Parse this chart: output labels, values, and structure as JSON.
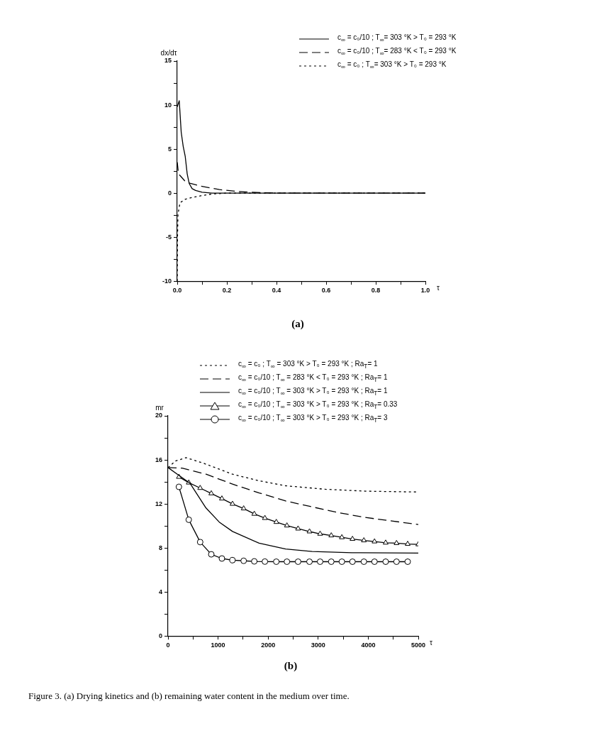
{
  "chart_data": [
    {
      "type": "line",
      "xlabel": "τ",
      "ylabel": "dx/dτ",
      "xlim": [
        0,
        1
      ],
      "ylim": [
        -10,
        15
      ],
      "legend": "top right",
      "xticks": [
        {
          "value": 0,
          "label": "0.0"
        },
        {
          "value": 0.1,
          "label": null
        },
        {
          "value": 0.2,
          "label": "0.2"
        },
        {
          "value": 0.3,
          "label": null
        },
        {
          "value": 0.4,
          "label": "0.4"
        },
        {
          "value": 0.5,
          "label": null
        },
        {
          "value": 0.6,
          "label": "0.6"
        },
        {
          "value": 0.7,
          "label": null
        },
        {
          "value": 0.8,
          "label": "0.8"
        },
        {
          "value": 0.9,
          "label": null
        },
        {
          "value": 1,
          "label": "1.0"
        }
      ],
      "yticks": [
        -10,
        {
          "value": -7.5,
          "label": null
        },
        -5,
        {
          "value": -2.5,
          "label": null
        },
        0,
        {
          "value": 2.5,
          "label": null
        },
        5,
        {
          "value": 7.5,
          "label": null
        },
        10,
        {
          "value": 12.5,
          "label": null
        },
        15
      ],
      "annotations": [
        "(a)"
      ],
      "series": [
        {
          "name": "c$_{∞}$ = c₀/10 ; T$_{∞}$= 303 °K > T₀ = 293 °K",
          "color": "#000000",
          "line_style": "solid",
          "x": [
            0,
            0.008,
            0.016,
            0.024,
            0.032,
            0.04,
            0.048,
            0.06,
            0.074,
            0.1,
            0.14,
            0.2,
            0.4,
            1.0
          ],
          "values": [
            9.8,
            10.5,
            6.9,
            5.3,
            4.2,
            2.2,
            1.1,
            0.5,
            0.3,
            0.1,
            0,
            0,
            0,
            0
          ]
        },
        {
          "name": "c$_{∞}$ = c₀/10 ; T$_{∞}$= 283 °K < T₀ = 293 °K",
          "color": "#000000",
          "line_style": "dashed",
          "x": [
            0,
            0.005,
            0.011,
            0.03,
            0.053,
            0.095,
            0.17,
            0.24,
            0.29,
            0.4,
            1.0
          ],
          "values": [
            3.5,
            2.2,
            2.0,
            1.4,
            1.1,
            0.8,
            0.4,
            0.2,
            0.1,
            0,
            0
          ]
        },
        {
          "name": "c$_{∞}$ = c₀ ; T$_{∞}$= 303 °K > T₀ = 293 °K",
          "color": "#000000",
          "line_style": "dotted",
          "x": [
            0,
            0.001,
            0.003,
            0.011,
            0.032,
            0.06,
            0.095,
            0.14,
            0.2,
            0.3,
            1.0
          ],
          "values": [
            -10,
            -5,
            -2.4,
            -1.1,
            -0.7,
            -0.5,
            -0.3,
            -0.1,
            0,
            0,
            0
          ]
        }
      ]
    },
    {
      "type": "line",
      "xlabel": "τ",
      "ylabel": "mr",
      "xlim": [
        0,
        5000
      ],
      "ylim": [
        0,
        20
      ],
      "legend": "top right",
      "xticks": [
        0,
        {
          "value": 500,
          "label": null
        },
        1000,
        {
          "value": 1500,
          "label": null
        },
        2000,
        {
          "value": 2500,
          "label": null
        },
        3000,
        {
          "value": 3500,
          "label": null
        },
        4000,
        {
          "value": 4500,
          "label": null
        },
        5000
      ],
      "yticks": [
        0,
        {
          "value": 2,
          "label": null
        },
        4,
        {
          "value": 6,
          "label": null
        },
        8,
        {
          "value": 10,
          "label": null
        },
        12,
        {
          "value": 14,
          "label": null
        },
        16,
        {
          "value": 18,
          "label": null
        },
        20
      ],
      "annotations": [
        "(b)",
        "Figure 3. (a) Drying kinetics and (b) remaining water content in the medium over time."
      ],
      "series": [
        {
          "name": "c$_{∞}$ = c₀ ; T$_{∞}$ = 303 °K > T₀ = 293 °K ; Ra$_{T}$= 1",
          "color": "#000000",
          "line_style": "dotted",
          "marker": "none",
          "x": [
            0,
            150,
            360,
            705,
            1288,
            1819,
            2349,
            3144,
            3940,
            5000
          ],
          "values": [
            15.3,
            15.9,
            16.2,
            15.7,
            14.7,
            14.1,
            13.65,
            13.33,
            13.16,
            13.08
          ]
        },
        {
          "name": "c$_{∞}$ = c₀/10 ; T$_{∞}$ = 283 °K < T₀ = 293 °K ; Ra$_{T}$= 1",
          "color": "#000000",
          "line_style": "dashed",
          "marker": "none",
          "x": [
            0,
            281,
            758,
            1288,
            1819,
            2349,
            2879,
            3409,
            3940,
            4470,
            5000
          ],
          "values": [
            15.3,
            15.25,
            14.7,
            13.8,
            13.0,
            12.27,
            11.73,
            11.2,
            10.77,
            10.45,
            10.13
          ]
        },
        {
          "name": "c$_{∞}$ = c₀/10 ; T$_{∞}$ = 303 °K > T₀ = 293 °K ; Ra$_{T}$= 1",
          "color": "#000000",
          "line_style": "solid",
          "marker": "none",
          "x": [
            0,
            440,
            758,
            1023,
            1288,
            1819,
            2349,
            2879,
            3674,
            5000
          ],
          "values": [
            15.3,
            13.87,
            11.63,
            10.35,
            9.5,
            8.43,
            7.9,
            7.68,
            7.57,
            7.53
          ]
        },
        {
          "name": "c$_{∞}$ = c₀/10 ; T$_{∞}$ = 303 °K > T₀ = 293 °K ; Ra$_{T}$= 0.33",
          "color": "#000000",
          "line_style": "solid",
          "marker": "triangle",
          "x": [
            217,
            414,
            642,
            864,
            1076,
            1288,
            1511,
            1723,
            1935,
            2163,
            2375,
            2598,
            2826,
            3038,
            3261,
            3473,
            3685,
            3913,
            4125,
            4348,
            4565,
            4788,
            5000
          ],
          "values": [
            14.45,
            13.93,
            13.44,
            12.95,
            12.48,
            12.0,
            11.58,
            11.09,
            10.71,
            10.35,
            10.03,
            9.75,
            9.49,
            9.28,
            9.13,
            8.96,
            8.81,
            8.68,
            8.58,
            8.47,
            8.43,
            8.36,
            8.32
          ]
        },
        {
          "name": "c$_{∞}$ = c₀/10 ; T$_{∞}$ = 303 °K > T₀ = 293 °K ; Ra$_{T}$= 3",
          "color": "#000000",
          "line_style": "solid",
          "marker": "circle",
          "x": [
            217,
            414,
            642,
            864,
            1076,
            1288,
            1511,
            1723,
            1935,
            2163,
            2375,
            2598,
            2826,
            3038,
            3261,
            3473,
            3685,
            3913,
            4125,
            4348,
            4565,
            4788
          ],
          "values": [
            13.55,
            10.56,
            8.53,
            7.42,
            7.04,
            6.89,
            6.83,
            6.78,
            6.76,
            6.75,
            6.75,
            6.75,
            6.75,
            6.75,
            6.75,
            6.75,
            6.75,
            6.75,
            6.75,
            6.75,
            6.75,
            6.75
          ]
        }
      ]
    }
  ]
}
